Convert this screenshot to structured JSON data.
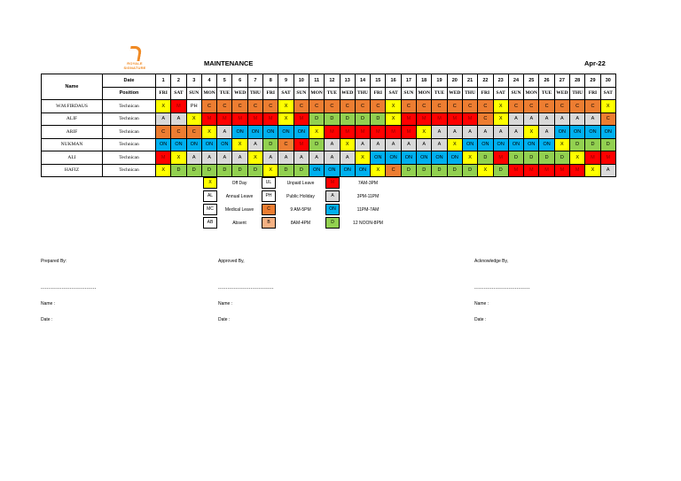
{
  "logo_text": [
    "ROYALE",
    "SIGNATURE"
  ],
  "title": "MAINTENANCE",
  "month": "Apr-22",
  "header": {
    "name": "Name",
    "date": "Date",
    "position": "Position"
  },
  "days": [
    "1",
    "2",
    "3",
    "4",
    "5",
    "6",
    "7",
    "8",
    "9",
    "10",
    "11",
    "12",
    "13",
    "14",
    "15",
    "16",
    "17",
    "18",
    "19",
    "20",
    "21",
    "22",
    "23",
    "24",
    "25",
    "26",
    "27",
    "28",
    "29",
    "30"
  ],
  "dows": [
    "FRI",
    "SAT",
    "SUN",
    "MON",
    "TUE",
    "WED",
    "THU",
    "FRI",
    "SAT",
    "SUN",
    "MON",
    "TUE",
    "WED",
    "THU",
    "FRI",
    "SAT",
    "SUN",
    "MON",
    "TUE",
    "WED",
    "THU",
    "FRI",
    "SAT",
    "SUN",
    "MON",
    "TUE",
    "WED",
    "THU",
    "FRI",
    "SAT"
  ],
  "staff": [
    {
      "name": "W.M.FIRDAUS",
      "position": "Technican",
      "shifts": [
        "X",
        "M",
        "PH",
        "C",
        "C",
        "C",
        "C",
        "C",
        "X",
        "C",
        "C",
        "C",
        "C",
        "C",
        "C",
        "X",
        "C",
        "C",
        "C",
        "C",
        "C",
        "C",
        "X",
        "C",
        "C",
        "C",
        "C",
        "C",
        "C",
        "X"
      ]
    },
    {
      "name": "ALIF",
      "position": "Technican",
      "shifts": [
        "A",
        "A",
        "X",
        "M",
        "M",
        "M",
        "M",
        "M",
        "X",
        "M",
        "D",
        "D",
        "D",
        "D",
        "D",
        "X",
        "M",
        "M",
        "M",
        "M",
        "M",
        "C",
        "X",
        "A",
        "A",
        "A",
        "A",
        "A",
        "A",
        "C"
      ]
    },
    {
      "name": "ARIF",
      "position": "Technican",
      "shifts": [
        "C",
        "C",
        "C",
        "X",
        "A",
        "ON",
        "ON",
        "ON",
        "ON",
        "ON",
        "X",
        "M",
        "M",
        "M",
        "M",
        "M",
        "M",
        "X",
        "A",
        "A",
        "A",
        "A",
        "A",
        "A",
        "X",
        "A",
        "ON",
        "ON",
        "ON",
        "ON"
      ]
    },
    {
      "name": "NUKMAN",
      "position": "Technican",
      "shifts": [
        "ON",
        "ON",
        "ON",
        "ON",
        "ON",
        "X",
        "A",
        "D",
        "C",
        "M",
        "D",
        "A",
        "X",
        "A",
        "A",
        "A",
        "A",
        "A",
        "A",
        "X",
        "ON",
        "ON",
        "ON",
        "ON",
        "ON",
        "ON",
        "X",
        "D",
        "D",
        "D"
      ]
    },
    {
      "name": "ALI",
      "position": "Technican",
      "shifts": [
        "M",
        "X",
        "A",
        "A",
        "A",
        "A",
        "X",
        "A",
        "A",
        "A",
        "A",
        "A",
        "A",
        "X",
        "ON",
        "ON",
        "ON",
        "ON",
        "ON",
        "ON",
        "X",
        "D",
        "M",
        "D",
        "D",
        "D",
        "D",
        "X",
        "M",
        "M"
      ]
    },
    {
      "name": "HAFIZ",
      "position": "Technican",
      "shifts": [
        "X",
        "D",
        "D",
        "D",
        "D",
        "D",
        "D",
        "X",
        "D",
        "D",
        "ON",
        "ON",
        "ON",
        "ON",
        "X",
        "C",
        "D",
        "D",
        "D",
        "D",
        "D",
        "X",
        "D",
        "M",
        "M",
        "M",
        "M",
        "M",
        "X",
        "A"
      ]
    }
  ],
  "legend": [
    {
      "code1": "X",
      "desc1": "Off Day",
      "code2": "UL",
      "desc2": "Unpaid Leave",
      "code3": "M",
      "desc3": "7AM-3PM"
    },
    {
      "code1": "AL",
      "desc1": "Annual Leave",
      "code2": "PH",
      "desc2": "Public Holiday",
      "code3": "A",
      "desc3": "3PM-11PM"
    },
    {
      "code1": "MC",
      "desc1": "Medical Leave",
      "code2": "C",
      "desc2": "9 AM-5PM",
      "code3": "ON",
      "desc3": "11PM-7AM"
    },
    {
      "code1": "AB",
      "desc1": "Absent",
      "code2": "B",
      "desc2": "8AM-4PM",
      "code3": "D",
      "desc3": "12 NOON-8PM"
    }
  ],
  "signatures": [
    {
      "title": "Prepared By:",
      "line": "-----------------------------",
      "name": "Name :",
      "date": "Date    :"
    },
    {
      "title": "Approved By,",
      "line": "-----------------------------",
      "name": "Name :",
      "date": "Date    :"
    },
    {
      "title": "Acknowledge By,",
      "line": "-----------------------------",
      "name": "Name :",
      "date": "Date    :"
    }
  ],
  "colors": {
    "X": "#ffff00",
    "M": "#ff0000",
    "C": "#ed7d31",
    "A": "#d9d9d9",
    "ON": "#00b0f0",
    "D": "#92d050",
    "B": "#f4b183"
  }
}
